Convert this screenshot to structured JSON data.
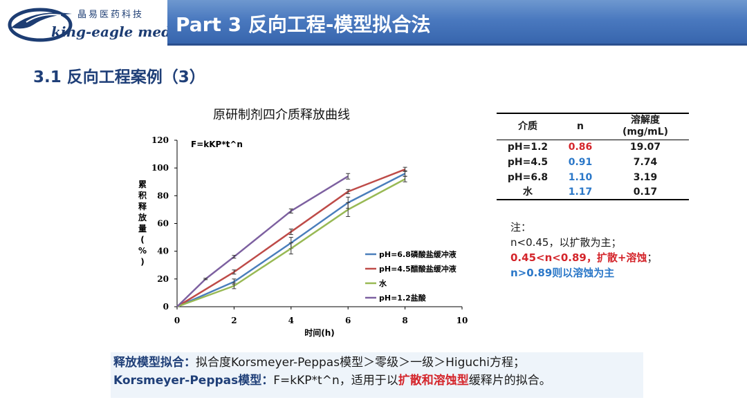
{
  "logo": {
    "cn": "晶易医药科技",
    "en": "king-eagle med"
  },
  "header": {
    "title": "Part 3 反向工程-模型拟合法"
  },
  "section": {
    "title": "3.1 反向工程案例（3）"
  },
  "chart_data": {
    "type": "line",
    "title": "原研制剂四介质释放曲线",
    "xlabel": "时间(h)",
    "ylabel": "累积释放量(%)",
    "xlim": [
      0,
      10
    ],
    "ylim": [
      0,
      120
    ],
    "xticks": [
      0,
      2,
      4,
      6,
      8,
      10
    ],
    "yticks": [
      0,
      20,
      40,
      60,
      80,
      100,
      120
    ],
    "annotation": "F=kKP*t^n",
    "legend_position": "right",
    "series": [
      {
        "name": "pH=6.8磷酸盐缓冲液",
        "color": "#4a7ebb",
        "x": [
          0,
          2,
          4,
          6,
          8
        ],
        "y": [
          0,
          18,
          46,
          75,
          96
        ],
        "err": [
          0,
          2,
          4,
          4,
          2
        ]
      },
      {
        "name": "pH=4.5醋酸盐缓冲液",
        "color": "#be4b48",
        "x": [
          0,
          2,
          4,
          6,
          7,
          8
        ],
        "y": [
          0,
          25,
          54,
          83,
          91,
          99
        ],
        "err": [
          0,
          1.5,
          2,
          1.5,
          0,
          1.5
        ]
      },
      {
        "name": "水",
        "color": "#98b954",
        "x": [
          0,
          2,
          4,
          6,
          8
        ],
        "y": [
          0,
          15,
          42,
          70,
          92
        ],
        "err": [
          0,
          2,
          4,
          5,
          2
        ]
      },
      {
        "name": "pH=1.2盐酸",
        "color": "#7d60a0",
        "x": [
          0,
          1,
          2,
          4,
          6
        ],
        "y": [
          0,
          20,
          36,
          69,
          94
        ],
        "err": [
          0,
          0.5,
          1,
          1.5,
          2
        ]
      }
    ]
  },
  "table": {
    "headers": [
      "介质",
      "n",
      "溶解度\n(mg/mL)"
    ],
    "rows": [
      {
        "medium": "pH=1.2",
        "n": "0.86",
        "n_color": "red",
        "solubility": "19.07"
      },
      {
        "medium": "pH=4.5",
        "n": "0.91",
        "n_color": "blue",
        "solubility": "7.74"
      },
      {
        "medium": "pH=6.8",
        "n": "1.10",
        "n_color": "blue",
        "solubility": "3.19"
      },
      {
        "medium": "水",
        "n": "1.17",
        "n_color": "blue",
        "solubility": "0.17"
      }
    ]
  },
  "notes": {
    "title": "注：",
    "line1": "n<0.45，以扩散为主；",
    "line2_red": "0.45<n<0.89，扩散+溶蚀",
    "line2_tail": "；",
    "line3": "n>0.89则以溶蚀为主"
  },
  "summary": {
    "label1": "释放模型拟合：",
    "text1": "拟合度Korsmeyer-Peppas模型＞零级＞一级＞Higuchi方程；",
    "label2": "Korsmeyer-Peppas模型：",
    "text2a": "F=kKP*t^n，适用于以",
    "text2_red": "扩散和溶蚀型",
    "text2b": "缓释片的拟合。"
  },
  "colors": {
    "header_bar": "#4a79bf",
    "navy": "#1f3f78",
    "red": "#d4252b",
    "blue": "#2a77c8",
    "summary_bg": "#eef4fa"
  }
}
